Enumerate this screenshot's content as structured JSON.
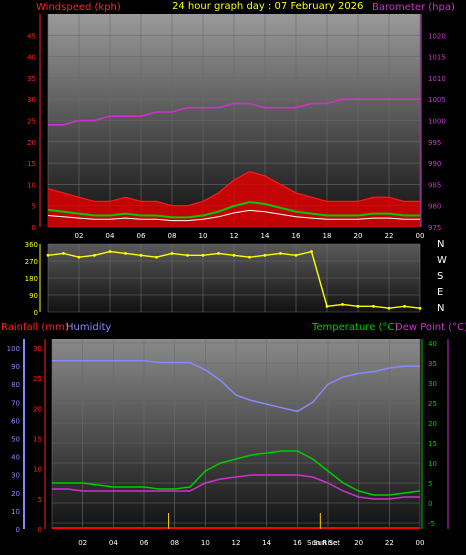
{
  "title": "24 hour graph day : 07 February 2026",
  "colors": {
    "windspeed": "#ff1a1a",
    "gust_band": "#e00000",
    "wind_avg": "#ffffff",
    "wind_green": "#00cc00",
    "barometer": "#cc33cc",
    "direction": "#ffff00",
    "humidity": "#8888ff",
    "temperature": "#00cc00",
    "dewpoint": "#cc33cc",
    "rainfall": "#ff0000",
    "sun_marker": "#ffcc00"
  },
  "labels": {
    "windspeed": "Windspeed (kph)",
    "barometer": "Barometer (hpa)",
    "rainfall": "Rainfall (mm)",
    "humidity": "Humidity",
    "temperature": "Temperature (°C)",
    "dewpoint": "Dew Point (°C)",
    "sun_rise": "Sun Rise",
    "sun_set": "Sun Set"
  },
  "compass": [
    "N",
    "W",
    "S",
    "E",
    "N"
  ],
  "x_ticks": [
    "02",
    "04",
    "06",
    "08",
    "10",
    "12",
    "14",
    "16",
    "18",
    "20",
    "22",
    "00"
  ],
  "chart_data": [
    {
      "type": "area",
      "panel": "wind_barometer",
      "x": [
        0,
        1,
        2,
        3,
        4,
        5,
        6,
        7,
        8,
        9,
        10,
        11,
        12,
        13,
        14,
        15,
        16,
        17,
        18,
        19,
        20,
        21,
        22,
        23,
        24
      ],
      "series": [
        {
          "name": "Windspeed (kph)",
          "axis": "left",
          "values": [
            9,
            8,
            7,
            6,
            6,
            7,
            6,
            6,
            5,
            5,
            6,
            8,
            11,
            13,
            12,
            10,
            8,
            7,
            6,
            6,
            6,
            7,
            7,
            6,
            6
          ]
        },
        {
          "name": "Barometer (hpa)",
          "axis": "right",
          "values": [
            999,
            999,
            1000,
            1000,
            1001,
            1001,
            1001,
            1002,
            1002,
            1003,
            1003,
            1003,
            1004,
            1004,
            1003,
            1003,
            1003,
            1004,
            1004,
            1005,
            1005,
            1005,
            1005,
            1005,
            1005
          ]
        }
      ],
      "ylim_left": [
        0,
        50
      ],
      "ylim_right": [
        975,
        1025
      ],
      "yticks_left": [
        0,
        5,
        10,
        15,
        20,
        25,
        30,
        35,
        40,
        45
      ],
      "yticks_right": [
        975,
        980,
        985,
        990,
        995,
        1000,
        1005,
        1010,
        1015,
        1020
      ]
    },
    {
      "type": "line",
      "panel": "wind_direction",
      "x": [
        0,
        1,
        2,
        3,
        4,
        5,
        6,
        7,
        8,
        9,
        10,
        11,
        12,
        13,
        14,
        15,
        16,
        17,
        18,
        19,
        20,
        21,
        22,
        23,
        24
      ],
      "series": [
        {
          "name": "Direction",
          "values": [
            300,
            310,
            290,
            300,
            320,
            310,
            300,
            290,
            310,
            300,
            300,
            310,
            300,
            290,
            300,
            310,
            300,
            320,
            30,
            40,
            30,
            30,
            20,
            30,
            20
          ]
        }
      ],
      "ylim": [
        0,
        360
      ],
      "yticks": [
        0,
        90,
        180,
        270,
        360
      ]
    },
    {
      "type": "line",
      "panel": "rain_humidity_temperature",
      "x": [
        0,
        1,
        2,
        3,
        4,
        5,
        6,
        7,
        8,
        9,
        10,
        11,
        12,
        13,
        14,
        15,
        16,
        17,
        18,
        19,
        20,
        21,
        22,
        23,
        24
      ],
      "series": [
        {
          "name": "Humidity",
          "axis": "humidity",
          "values": [
            93,
            93,
            93,
            93,
            93,
            93,
            93,
            92,
            92,
            92,
            88,
            82,
            74,
            71,
            69,
            67,
            65,
            70,
            80,
            84,
            86,
            87,
            89,
            90,
            90
          ]
        },
        {
          "name": "Temperature (°C)",
          "axis": "temperature",
          "values": [
            5,
            5,
            5,
            4.5,
            4,
            4,
            4,
            3.5,
            3.5,
            4,
            8,
            10,
            11,
            12,
            12.5,
            13,
            13,
            11,
            8,
            5,
            3,
            2,
            2,
            2.5,
            3
          ]
        },
        {
          "name": "Dew Point (°C)",
          "axis": "temperature",
          "values": [
            3.5,
            3.5,
            3,
            3,
            3,
            3,
            3,
            3,
            3,
            3,
            5,
            6,
            6.5,
            7,
            7,
            7,
            7,
            6.5,
            5,
            3,
            1.5,
            1,
            1,
            1.5,
            1.5
          ]
        },
        {
          "name": "Rainfall (mm)",
          "axis": "rainfall",
          "values": [
            0,
            0,
            0,
            0,
            0,
            0,
            0,
            0,
            0,
            0,
            0,
            0,
            0,
            0,
            0,
            0,
            0,
            0,
            0,
            0,
            0,
            0,
            0,
            0,
            0
          ]
        }
      ],
      "yticks_rainfall": [
        0,
        5,
        10,
        15,
        20,
        25,
        30
      ],
      "yticks_humidity": [
        0,
        10,
        20,
        30,
        40,
        50,
        60,
        70,
        80,
        90,
        100
      ],
      "yticks_temperature": [
        -5,
        0,
        5,
        10,
        15,
        20,
        25,
        30,
        35,
        40
      ],
      "ylim_rainfall": [
        0,
        31.5
      ],
      "ylim_humidity": [
        0,
        105
      ],
      "ylim_temperature": [
        -6.5,
        41
      ],
      "sun_rise_hour": 7.6,
      "sun_set_hour": 17.5
    }
  ]
}
